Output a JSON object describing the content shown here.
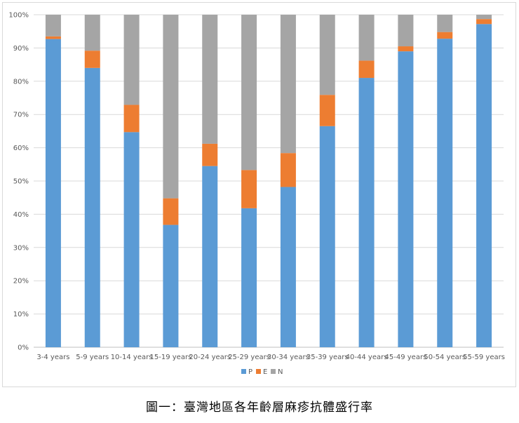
{
  "chart_data": {
    "type": "bar",
    "stacked": true,
    "categories": [
      "3-4 years",
      "5-9 years",
      "10-14 years",
      "15-19 years",
      "20-24 years",
      "25-29 years",
      "30-34 years",
      "35-39 years",
      "40-44 years",
      "45-49 years",
      "50-54 years",
      "55-59 years"
    ],
    "series": [
      {
        "name": "P",
        "color": "#5b9bd5",
        "values": [
          92.7,
          84.0,
          64.7,
          36.8,
          54.5,
          41.8,
          48.2,
          66.5,
          81.0,
          89.0,
          92.8,
          97.2
        ]
      },
      {
        "name": "E",
        "color": "#ed7d31",
        "values": [
          0.8,
          5.2,
          8.2,
          8.0,
          6.7,
          11.5,
          10.2,
          9.4,
          5.2,
          1.5,
          2.0,
          1.5
        ]
      },
      {
        "name": "N",
        "color": "#a5a5a5",
        "values": [
          6.5,
          10.8,
          27.1,
          55.2,
          38.8,
          46.7,
          41.6,
          24.1,
          13.8,
          9.5,
          5.2,
          1.3
        ]
      }
    ],
    "ylim": [
      0,
      100
    ],
    "y_ticks": [
      "0%",
      "10%",
      "20%",
      "30%",
      "40%",
      "50%",
      "60%",
      "70%",
      "80%",
      "90%",
      "100%"
    ],
    "grid": true,
    "legend_position": "bottom"
  },
  "caption": "圖一：臺灣地區各年齡層麻疹抗體盛行率"
}
